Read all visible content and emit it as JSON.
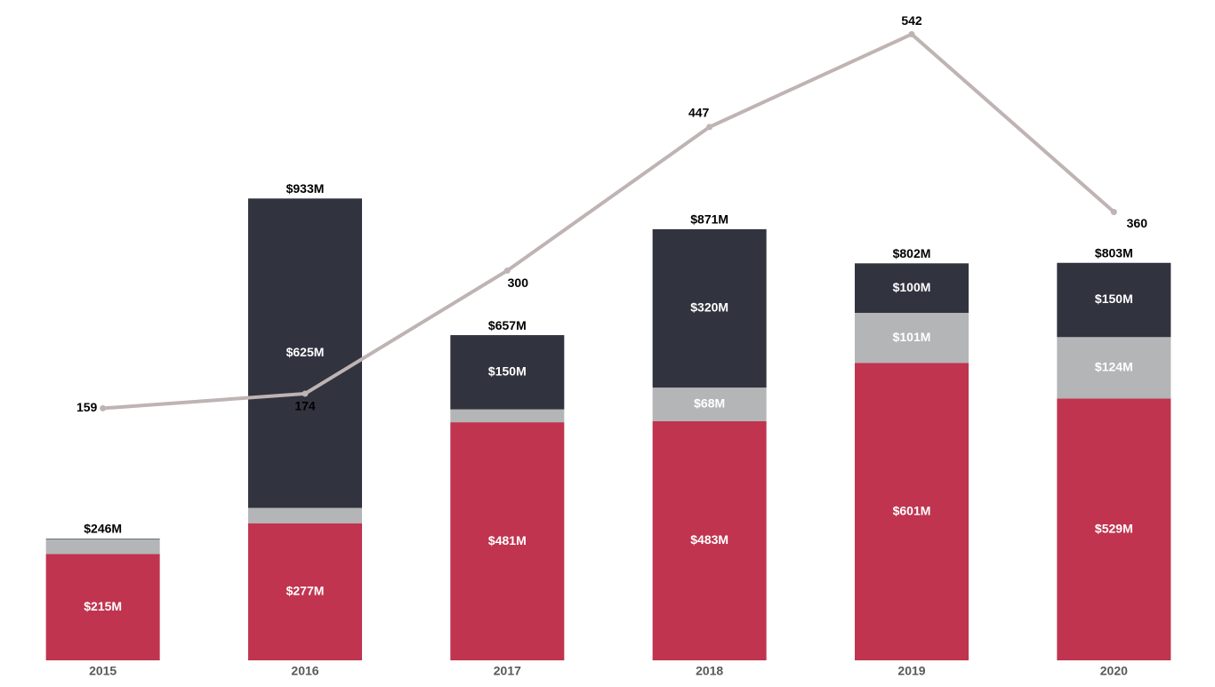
{
  "chart_data": {
    "type": "bar",
    "categories": [
      "2015",
      "2016",
      "2017",
      "2018",
      "2019",
      "2020"
    ],
    "series": [
      {
        "color": "#c0344f",
        "values": [
          215,
          277,
          481,
          483,
          601,
          529
        ],
        "value_labels": [
          "$215M",
          "$277M",
          "$481M",
          "$483M",
          "$601M",
          "$529M"
        ]
      },
      {
        "color": "#b3b5b6",
        "values": [
          30,
          31,
          26,
          68,
          101,
          124
        ],
        "value_labels": [
          null,
          null,
          null,
          "$68M",
          "$101M",
          "$124M"
        ]
      },
      {
        "color": "#31333e",
        "values": [
          1,
          625,
          150,
          320,
          100,
          150
        ],
        "value_labels": [
          null,
          "$625M",
          "$150M",
          "$320M",
          "$100M",
          "$150M"
        ]
      },
      {
        "type": "line",
        "axis": "y2",
        "color": "#bfb3b3",
        "values": [
          159,
          174,
          300,
          447,
          542,
          360
        ]
      }
    ],
    "totals": [
      246,
      933,
      657,
      871,
      802,
      803
    ],
    "total_labels": [
      "$246M",
      "$933M",
      "$657M",
      "$871M",
      "$802M",
      "$803M"
    ],
    "ylim": [
      0,
      1334
    ],
    "y2lim": [
      -99,
      577
    ]
  }
}
